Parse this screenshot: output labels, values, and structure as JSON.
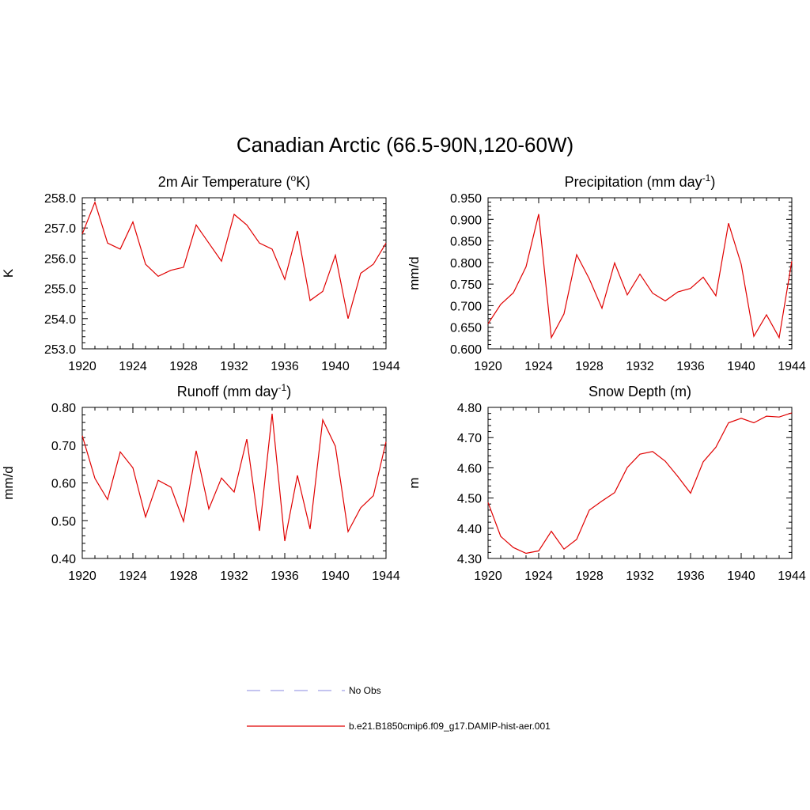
{
  "title": "Canadian Arctic (66.5-90N,120-60W)",
  "legend": [
    {
      "label": "No Obs",
      "color": "#a0a0e8",
      "style": "dashed"
    },
    {
      "label": "b.e21.B1850cmip6.f09_g17.DAMIP-hist-aer.001",
      "color": "#e00000",
      "style": "solid"
    }
  ],
  "chart_data": [
    {
      "type": "line",
      "title_main": "2m Air Temperature (",
      "title_sup": "o",
      "title_tail": "K)",
      "ylabel": "K",
      "xlim": [
        1920,
        1944
      ],
      "ylim": [
        253.0,
        258.0
      ],
      "xticks": [
        "1920",
        "1924",
        "1928",
        "1932",
        "1936",
        "1940",
        "1944"
      ],
      "yticks": [
        "253.0",
        "254.0",
        "255.0",
        "256.0",
        "257.0",
        "258.0"
      ],
      "series": [
        {
          "color": "#e00000",
          "x": [
            1920,
            1921,
            1922,
            1923,
            1924,
            1925,
            1926,
            1927,
            1928,
            1929,
            1930,
            1931,
            1932,
            1933,
            1934,
            1935,
            1936,
            1937,
            1938,
            1939,
            1940,
            1941,
            1942,
            1943,
            1944
          ],
          "values": [
            256.8,
            257.85,
            256.5,
            256.3,
            257.2,
            255.8,
            255.4,
            255.6,
            255.7,
            257.1,
            256.5,
            255.9,
            257.45,
            257.1,
            256.5,
            256.3,
            255.3,
            256.9,
            254.6,
            254.9,
            256.1,
            254.0,
            255.5,
            255.8,
            256.5
          ]
        }
      ]
    },
    {
      "type": "line",
      "title_main": "Precipitation (mm day",
      "title_sup": "-1",
      "title_tail": ")",
      "ylabel": "mm/d",
      "xlim": [
        1920,
        1944
      ],
      "ylim": [
        0.6,
        0.95
      ],
      "xticks": [
        "1920",
        "1924",
        "1928",
        "1932",
        "1936",
        "1940",
        "1944"
      ],
      "yticks": [
        "0.600",
        "0.650",
        "0.700",
        "0.750",
        "0.800",
        "0.850",
        "0.900",
        "0.950"
      ],
      "series": [
        {
          "color": "#e00000",
          "x": [
            1920,
            1921,
            1922,
            1923,
            1924,
            1925,
            1926,
            1927,
            1928,
            1929,
            1930,
            1931,
            1932,
            1933,
            1934,
            1935,
            1936,
            1937,
            1938,
            1939,
            1940,
            1941,
            1942,
            1943,
            1944
          ],
          "values": [
            0.658,
            0.703,
            0.73,
            0.79,
            0.912,
            0.626,
            0.681,
            0.818,
            0.762,
            0.694,
            0.799,
            0.725,
            0.773,
            0.729,
            0.711,
            0.732,
            0.74,
            0.766,
            0.723,
            0.891,
            0.796,
            0.629,
            0.679,
            0.626,
            0.803
          ]
        }
      ]
    },
    {
      "type": "line",
      "title_main": "Runoff (mm day",
      "title_sup": "-1",
      "title_tail": ")",
      "ylabel": "mm/d",
      "xlim": [
        1920,
        1944
      ],
      "ylim": [
        0.4,
        0.8
      ],
      "xticks": [
        "1920",
        "1924",
        "1928",
        "1932",
        "1936",
        "1940",
        "1944"
      ],
      "yticks": [
        "0.40",
        "0.50",
        "0.60",
        "0.70",
        "0.80"
      ],
      "series": [
        {
          "color": "#e00000",
          "x": [
            1920,
            1921,
            1922,
            1923,
            1924,
            1925,
            1926,
            1927,
            1928,
            1929,
            1930,
            1931,
            1932,
            1933,
            1934,
            1935,
            1936,
            1937,
            1938,
            1939,
            1940,
            1941,
            1942,
            1943,
            1944
          ],
          "values": [
            0.725,
            0.612,
            0.556,
            0.682,
            0.64,
            0.51,
            0.607,
            0.589,
            0.498,
            0.685,
            0.531,
            0.613,
            0.576,
            0.716,
            0.473,
            0.783,
            0.446,
            0.62,
            0.478,
            0.767,
            0.697,
            0.471,
            0.534,
            0.566,
            0.709
          ]
        }
      ]
    },
    {
      "type": "line",
      "title_main": "Snow Depth (m)",
      "title_sup": "",
      "title_tail": "",
      "ylabel": "m",
      "xlim": [
        1920,
        1944
      ],
      "ylim": [
        4.3,
        4.8
      ],
      "xticks": [
        "1920",
        "1924",
        "1928",
        "1932",
        "1936",
        "1940",
        "1944"
      ],
      "yticks": [
        "4.30",
        "4.40",
        "4.50",
        "4.60",
        "4.70",
        "4.80"
      ],
      "series": [
        {
          "color": "#e00000",
          "x": [
            1920,
            1921,
            1922,
            1923,
            1924,
            1925,
            1926,
            1927,
            1928,
            1929,
            1930,
            1931,
            1932,
            1933,
            1934,
            1935,
            1936,
            1937,
            1938,
            1939,
            1940,
            1941,
            1942,
            1943,
            1944
          ],
          "values": [
            4.485,
            4.373,
            4.336,
            4.317,
            4.325,
            4.39,
            4.331,
            4.363,
            4.46,
            4.49,
            4.518,
            4.601,
            4.645,
            4.654,
            4.622,
            4.571,
            4.516,
            4.62,
            4.668,
            4.749,
            4.764,
            4.749,
            4.771,
            4.768,
            4.782
          ]
        }
      ]
    }
  ]
}
